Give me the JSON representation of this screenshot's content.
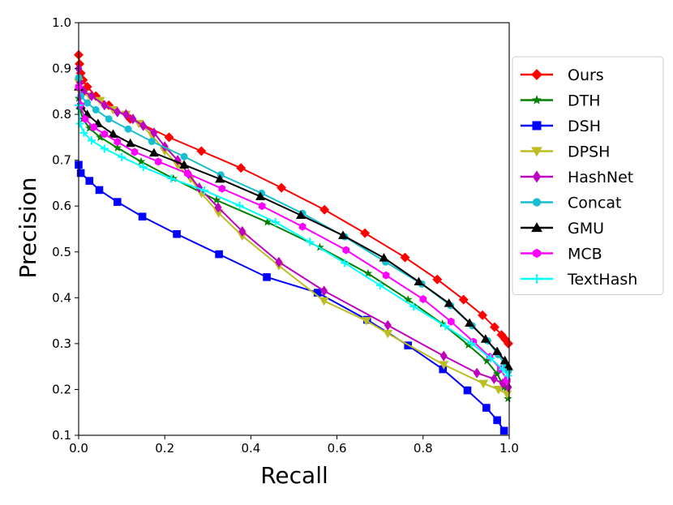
{
  "chart_data": {
    "type": "line",
    "title": "",
    "xlabel": "Recall",
    "ylabel": "Precision",
    "xlim": [
      0.0,
      1.0
    ],
    "ylim": [
      0.1,
      1.0
    ],
    "xticks": [
      "0.0",
      "0.2",
      "0.4",
      "0.6",
      "0.8",
      "1.0"
    ],
    "yticks": [
      "0.1",
      "0.2",
      "0.3",
      "0.4",
      "0.5",
      "0.6",
      "0.7",
      "0.8",
      "0.9",
      "1.0"
    ],
    "grid": false,
    "legend_position": "right",
    "series": [
      {
        "name": "Ours",
        "color": "#ff0000",
        "marker": "diamond",
        "x": [
          0.0,
          0.002,
          0.005,
          0.01,
          0.02,
          0.04,
          0.07,
          0.12,
          0.21,
          0.285,
          0.377,
          0.471,
          0.571,
          0.665,
          0.758,
          0.833,
          0.894,
          0.938,
          0.966,
          0.982,
          0.991,
          0.998
        ],
        "y": [
          0.93,
          0.91,
          0.89,
          0.875,
          0.86,
          0.84,
          0.82,
          0.79,
          0.75,
          0.72,
          0.683,
          0.64,
          0.592,
          0.541,
          0.488,
          0.44,
          0.396,
          0.362,
          0.336,
          0.319,
          0.309,
          0.3
        ]
      },
      {
        "name": "DTH",
        "color": "#008000",
        "marker": "star",
        "x": [
          0.0,
          0.003,
          0.01,
          0.025,
          0.05,
          0.09,
          0.145,
          0.22,
          0.32,
          0.438,
          0.56,
          0.672,
          0.765,
          0.845,
          0.905,
          0.948,
          0.972,
          0.988,
          0.997
        ],
        "y": [
          0.835,
          0.81,
          0.79,
          0.77,
          0.75,
          0.727,
          0.697,
          0.66,
          0.613,
          0.565,
          0.51,
          0.453,
          0.396,
          0.343,
          0.297,
          0.262,
          0.234,
          0.205,
          0.18
        ]
      },
      {
        "name": "DSH",
        "color": "#0000ff",
        "marker": "square",
        "x": [
          0.0,
          0.005,
          0.025,
          0.048,
          0.09,
          0.148,
          0.228,
          0.326,
          0.437,
          0.555,
          0.67,
          0.765,
          0.846,
          0.903,
          0.947,
          0.972,
          0.988
        ],
        "y": [
          0.69,
          0.672,
          0.655,
          0.635,
          0.609,
          0.577,
          0.539,
          0.495,
          0.445,
          0.411,
          0.352,
          0.296,
          0.244,
          0.198,
          0.16,
          0.133,
          0.11
        ]
      },
      {
        "name": "DPSH",
        "color": "#bcbd22",
        "marker": "triangle-down",
        "x": [
          0.0,
          0.003,
          0.01,
          0.025,
          0.05,
          0.08,
          0.11,
          0.14,
          0.17,
          0.2,
          0.23,
          0.26,
          0.285,
          0.325,
          0.38,
          0.465,
          0.57,
          0.668,
          0.718,
          0.848,
          0.94,
          0.975,
          0.995
        ],
        "y": [
          0.87,
          0.85,
          0.845,
          0.84,
          0.83,
          0.81,
          0.8,
          0.78,
          0.755,
          0.72,
          0.69,
          0.66,
          0.628,
          0.585,
          0.535,
          0.47,
          0.393,
          0.35,
          0.322,
          0.254,
          0.213,
          0.2,
          0.19
        ]
      },
      {
        "name": "HashNet",
        "color": "#bf00bf",
        "marker": "diamond-thin",
        "x": [
          0.0,
          0.003,
          0.012,
          0.03,
          0.06,
          0.09,
          0.11,
          0.126,
          0.15,
          0.175,
          0.2,
          0.23,
          0.255,
          0.28,
          0.324,
          0.38,
          0.465,
          0.57,
          0.718,
          0.848,
          0.925,
          0.965,
          0.985,
          0.998
        ],
        "y": [
          0.9,
          0.87,
          0.85,
          0.84,
          0.82,
          0.805,
          0.8,
          0.79,
          0.775,
          0.76,
          0.73,
          0.7,
          0.67,
          0.64,
          0.597,
          0.545,
          0.478,
          0.415,
          0.34,
          0.273,
          0.236,
          0.223,
          0.213,
          0.205
        ]
      },
      {
        "name": "Concat",
        "color": "#17becf",
        "marker": "circle",
        "x": [
          0.0,
          0.005,
          0.02,
          0.04,
          0.07,
          0.115,
          0.17,
          0.245,
          0.33,
          0.425,
          0.52,
          0.618,
          0.713,
          0.797,
          0.864,
          0.914,
          0.95,
          0.974,
          0.99,
          0.998
        ],
        "y": [
          0.88,
          0.84,
          0.825,
          0.81,
          0.79,
          0.768,
          0.741,
          0.708,
          0.668,
          0.628,
          0.584,
          0.533,
          0.478,
          0.43,
          0.383,
          0.339,
          0.306,
          0.276,
          0.255,
          0.24
        ]
      },
      {
        "name": "GMU",
        "color": "#000000",
        "marker": "triangle-up",
        "x": [
          0.0,
          0.005,
          0.02,
          0.045,
          0.08,
          0.12,
          0.175,
          0.245,
          0.328,
          0.422,
          0.516,
          0.614,
          0.709,
          0.79,
          0.86,
          0.908,
          0.945,
          0.972,
          0.99,
          0.998
        ],
        "y": [
          0.86,
          0.82,
          0.8,
          0.78,
          0.757,
          0.737,
          0.716,
          0.69,
          0.659,
          0.621,
          0.58,
          0.536,
          0.487,
          0.435,
          0.388,
          0.345,
          0.31,
          0.283,
          0.263,
          0.25
        ]
      },
      {
        "name": "MCB",
        "color": "#ff00ff",
        "marker": "hexagon",
        "x": [
          0.0,
          0.004,
          0.015,
          0.035,
          0.06,
          0.09,
          0.13,
          0.185,
          0.253,
          0.333,
          0.426,
          0.52,
          0.621,
          0.714,
          0.8,
          0.865,
          0.917,
          0.955,
          0.98,
          0.995
        ],
        "y": [
          0.86,
          0.82,
          0.79,
          0.772,
          0.757,
          0.74,
          0.718,
          0.697,
          0.671,
          0.638,
          0.6,
          0.555,
          0.504,
          0.449,
          0.397,
          0.348,
          0.304,
          0.271,
          0.244,
          0.22
        ]
      },
      {
        "name": "TextHash",
        "color": "#00ffff",
        "marker": "plus",
        "x": [
          0.0,
          0.003,
          0.012,
          0.03,
          0.06,
          0.1,
          0.15,
          0.215,
          0.292,
          0.374,
          0.457,
          0.537,
          0.618,
          0.7,
          0.778,
          0.852,
          0.913,
          0.957,
          0.985,
          0.997
        ],
        "y": [
          0.82,
          0.78,
          0.76,
          0.743,
          0.725,
          0.707,
          0.685,
          0.66,
          0.634,
          0.601,
          0.565,
          0.522,
          0.476,
          0.427,
          0.381,
          0.338,
          0.3,
          0.268,
          0.244,
          0.23
        ]
      }
    ]
  }
}
